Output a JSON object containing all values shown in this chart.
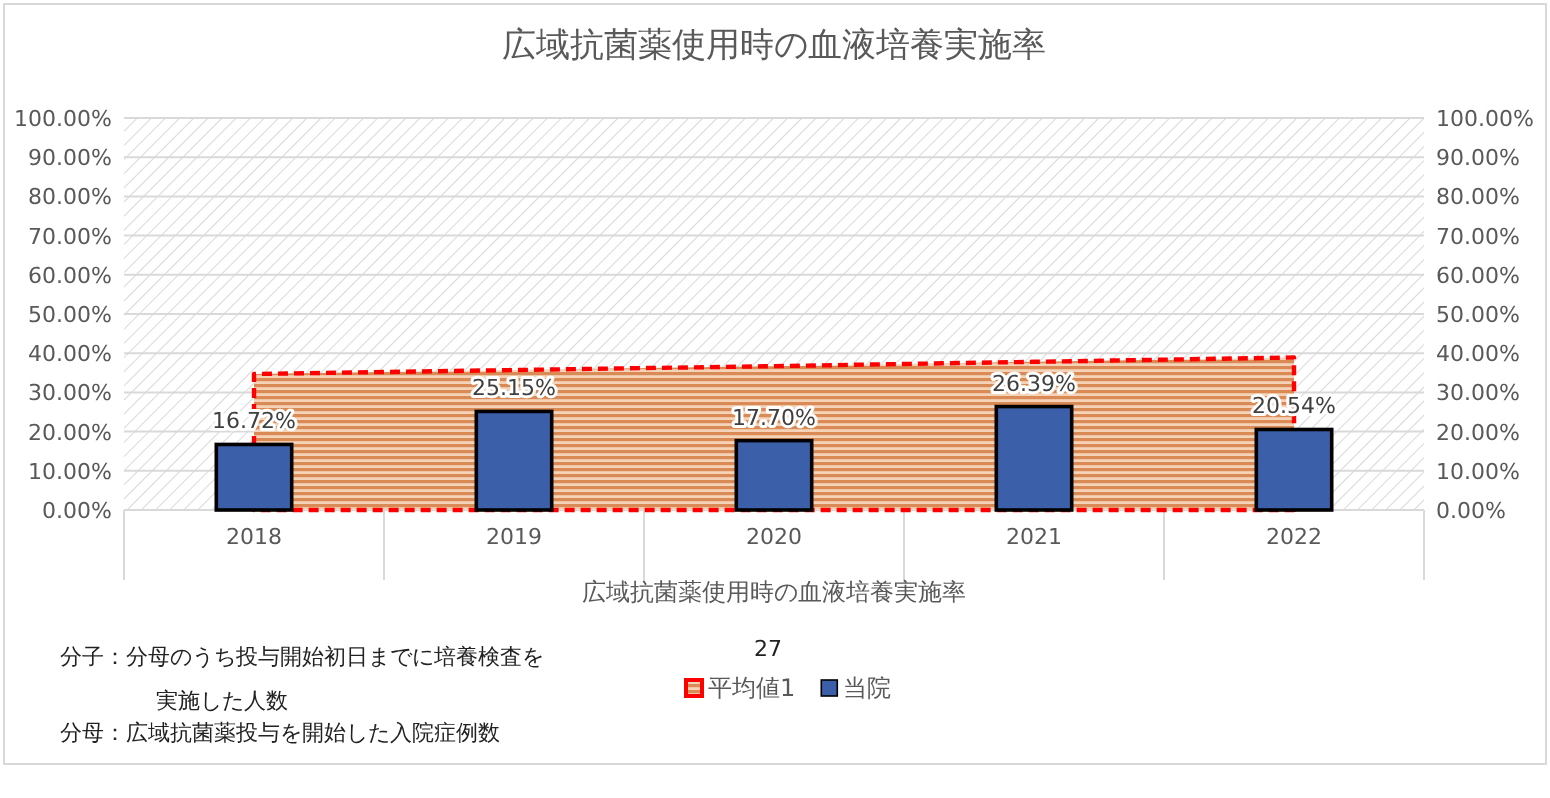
{
  "chart_data": {
    "type": "bar",
    "title": "広域抗菌薬使用時の血液培養実施率",
    "xlabel": "広域抗菌薬使用時の血液培養実施率",
    "categories": [
      "2018",
      "2019",
      "2020",
      "2021",
      "2022"
    ],
    "series": [
      {
        "name": "平均値1",
        "type": "area",
        "color": "#ff0000",
        "line_style": "dashed",
        "values": [
          34.7,
          35.7,
          36.7,
          37.8,
          38.9
        ]
      },
      {
        "name": "当院",
        "color": "#3b5fa8",
        "data_labels": true,
        "value_labels": [
          "16.72%",
          "25.15%",
          "17.70%",
          "26.39%",
          "20.54%"
        ],
        "values": [
          16.72,
          25.15,
          17.7,
          26.39,
          20.54
        ]
      }
    ],
    "ylim": [
      0,
      100
    ],
    "yticks": [
      {
        "value": 0,
        "label": "0.00%"
      },
      {
        "value": 10,
        "label": "10.00%"
      },
      {
        "value": 20,
        "label": "20.00%"
      },
      {
        "value": 30,
        "label": "30.00%"
      },
      {
        "value": 40,
        "label": "40.00%"
      },
      {
        "value": 50,
        "label": "50.00%"
      },
      {
        "value": 60,
        "label": "60.00%"
      },
      {
        "value": 70,
        "label": "70.00%"
      },
      {
        "value": 80,
        "label": "80.00%"
      },
      {
        "value": 90,
        "label": "90.00%"
      },
      {
        "value": 100,
        "label": "100.00%"
      }
    ],
    "y2lim": [
      0,
      100
    ],
    "y2ticks": [
      {
        "value": 0,
        "label": "0.00%"
      },
      {
        "value": 10,
        "label": "10.00%"
      },
      {
        "value": 20,
        "label": "20.00%"
      },
      {
        "value": 30,
        "label": "30.00%"
      },
      {
        "value": 40,
        "label": "40.00%"
      },
      {
        "value": 50,
        "label": "50.00%"
      },
      {
        "value": 60,
        "label": "60.00%"
      },
      {
        "value": 70,
        "label": "70.00%"
      },
      {
        "value": 80,
        "label": "80.00%"
      },
      {
        "value": 90,
        "label": "90.00%"
      },
      {
        "value": 100,
        "label": "100.00%"
      }
    ],
    "grid": "y",
    "legend": "bottom",
    "annotations": [
      "27",
      "分子：分母のうち投与開始初日までに培養検査を実施した人数",
      "分母：広域抗菌薬投与を開始した入院症例数"
    ]
  }
}
